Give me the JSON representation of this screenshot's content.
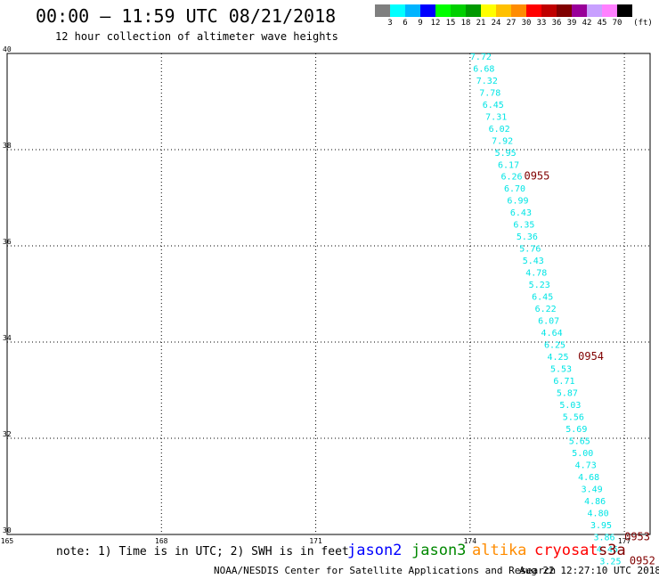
{
  "header": {
    "title": "00:00 – 11:59 UTC 08/21/2018",
    "subtitle": "12 hour collection of altimeter wave heights"
  },
  "color_scale": {
    "unit": "(ft)",
    "colors": [
      "#7f7f7f",
      "#00ffff",
      "#00b4ff",
      "#0000ff",
      "#00ff00",
      "#00d000",
      "#009900",
      "#ffff00",
      "#ffc000",
      "#ff8c00",
      "#ff0000",
      "#c00000",
      "#800000",
      "#990099",
      "#c8a0ff",
      "#ff80ff",
      "#000000"
    ],
    "labels": [
      "3",
      "6",
      "9",
      "12",
      "15",
      "18",
      "21",
      "24",
      "27",
      "30",
      "33",
      "36",
      "39",
      "42",
      "45",
      "70"
    ]
  },
  "footer": {
    "note": "note: 1) Time is in UTC; 2) SWH is in feet",
    "credit": "NOAA/NESDIS Center for Satellite Applications and Research",
    "generated": "Aug 22 12:27:10 UTC 2018"
  },
  "satellites": [
    {
      "name": "jason2",
      "color": "#0000ff"
    },
    {
      "name": "jason3",
      "color": "#008800"
    },
    {
      "name": "altika",
      "color": "#ff8c00"
    },
    {
      "name": "cryosat",
      "color": "#ff0000"
    },
    {
      "name": "s3a",
      "color": "#800000"
    }
  ],
  "chart_data": {
    "type": "scatter",
    "xlim": [
      165,
      177.5
    ],
    "ylim": [
      30,
      40
    ],
    "x_ticks": [
      "165",
      "168",
      "171",
      "174",
      "177"
    ],
    "y_ticks": [
      "30",
      "32",
      "34",
      "36",
      "38",
      "40"
    ],
    "grid": true,
    "series": [
      {
        "name": "cryosat",
        "color": "#00e5e5",
        "points": [
          {
            "x": 174.0,
            "y": 39.87,
            "v": "7.72"
          },
          {
            "x": 174.06,
            "y": 39.62,
            "v": "6.68"
          },
          {
            "x": 174.12,
            "y": 39.37,
            "v": "7.32"
          },
          {
            "x": 174.18,
            "y": 39.12,
            "v": "7.78"
          },
          {
            "x": 174.24,
            "y": 38.87,
            "v": "6.45"
          },
          {
            "x": 174.3,
            "y": 38.62,
            "v": "7.31"
          },
          {
            "x": 174.36,
            "y": 38.37,
            "v": "6.02"
          },
          {
            "x": 174.42,
            "y": 38.12,
            "v": "7.92"
          },
          {
            "x": 174.48,
            "y": 37.87,
            "v": "5.95"
          },
          {
            "x": 174.54,
            "y": 37.62,
            "v": "6.17"
          },
          {
            "x": 174.6,
            "y": 37.38,
            "v": "6.26"
          },
          {
            "x": 174.66,
            "y": 37.13,
            "v": "6.70"
          },
          {
            "x": 174.72,
            "y": 36.88,
            "v": "6.99"
          },
          {
            "x": 174.78,
            "y": 36.63,
            "v": "6.43"
          },
          {
            "x": 174.84,
            "y": 36.38,
            "v": "6.35"
          },
          {
            "x": 174.9,
            "y": 36.13,
            "v": "5.36"
          },
          {
            "x": 174.96,
            "y": 35.88,
            "v": "5.76"
          },
          {
            "x": 175.02,
            "y": 35.63,
            "v": "5.43"
          },
          {
            "x": 175.08,
            "y": 35.38,
            "v": "4.78"
          },
          {
            "x": 175.14,
            "y": 35.13,
            "v": "5.23"
          },
          {
            "x": 175.2,
            "y": 34.88,
            "v": "6.45"
          },
          {
            "x": 175.26,
            "y": 34.63,
            "v": "6.22"
          },
          {
            "x": 175.32,
            "y": 34.38,
            "v": "6.07"
          },
          {
            "x": 175.38,
            "y": 34.13,
            "v": "4.64"
          },
          {
            "x": 175.44,
            "y": 33.88,
            "v": "6.25"
          },
          {
            "x": 175.5,
            "y": 33.63,
            "v": "4.25"
          },
          {
            "x": 175.56,
            "y": 33.38,
            "v": "5.53"
          },
          {
            "x": 175.62,
            "y": 33.13,
            "v": "6.71"
          },
          {
            "x": 175.68,
            "y": 32.88,
            "v": "5.87"
          },
          {
            "x": 175.74,
            "y": 32.63,
            "v": "5.03"
          },
          {
            "x": 175.8,
            "y": 32.38,
            "v": "5.56"
          },
          {
            "x": 175.86,
            "y": 32.13,
            "v": "5.69"
          },
          {
            "x": 175.92,
            "y": 31.88,
            "v": "5.65"
          },
          {
            "x": 175.98,
            "y": 31.63,
            "v": "5.00"
          },
          {
            "x": 176.04,
            "y": 31.38,
            "v": "4.73"
          },
          {
            "x": 176.1,
            "y": 31.13,
            "v": "4.68"
          },
          {
            "x": 176.16,
            "y": 30.88,
            "v": "3.49"
          },
          {
            "x": 176.22,
            "y": 30.63,
            "v": "4.86"
          },
          {
            "x": 176.28,
            "y": 30.38,
            "v": "4.80"
          },
          {
            "x": 176.34,
            "y": 30.13,
            "v": "3.95"
          },
          {
            "x": 176.4,
            "y": 29.88,
            "v": "3.86"
          },
          {
            "x": 176.46,
            "y": 29.63,
            "v": "4.45"
          },
          {
            "x": 176.52,
            "y": 29.38,
            "v": "3.25"
          }
        ]
      }
    ],
    "annotations": [
      {
        "x": 175.05,
        "y": 37.38,
        "text": "0955",
        "color": "#800000"
      },
      {
        "x": 176.1,
        "y": 33.63,
        "text": "0954",
        "color": "#800000"
      },
      {
        "x": 177.0,
        "y": 29.88,
        "text": "0953",
        "color": "#800000"
      },
      {
        "x": 177.1,
        "y": 29.38,
        "text": "0952",
        "color": "#800000"
      }
    ]
  }
}
